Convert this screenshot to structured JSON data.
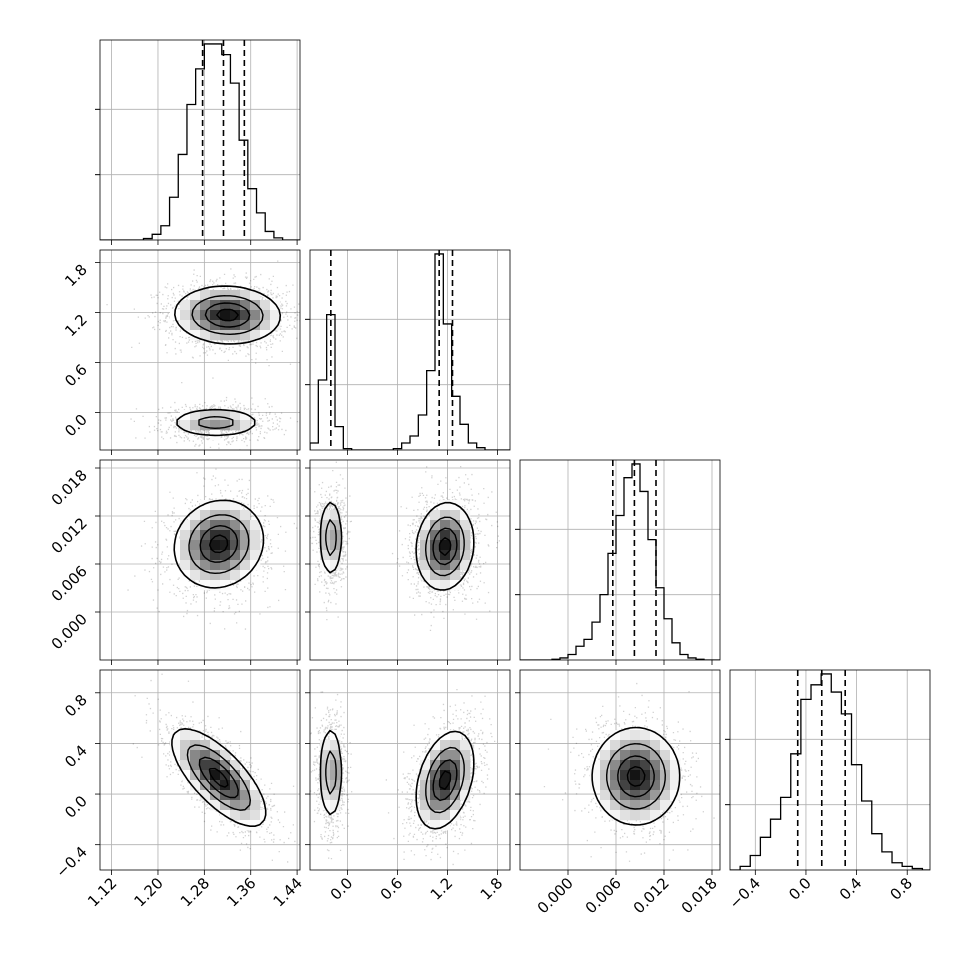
{
  "chart_data": {
    "type": "corner",
    "grid": true,
    "parameters": [
      {
        "ticks": [
          "1.12",
          "1.20",
          "1.28",
          "1.36",
          "1.44"
        ],
        "range": [
          1.1,
          1.445
        ],
        "quantiles": [
          1.277,
          1.313,
          1.349
        ]
      },
      {
        "ticks": [
          "0.0",
          "0.6",
          "1.2",
          "1.8"
        ],
        "range": [
          -0.45,
          1.95
        ],
        "quantiles": [
          -0.2,
          1.1,
          1.26
        ]
      },
      {
        "ticks": [
          "0.000",
          "0.006",
          "0.012",
          "0.018"
        ],
        "range": [
          -0.006,
          0.019
        ],
        "quantiles": [
          0.0056,
          0.0083,
          0.011
        ]
      },
      {
        "ticks": [
          "−0.4",
          "0.0",
          "0.4",
          "0.8"
        ],
        "range": [
          -0.6,
          0.98
        ],
        "quantiles": [
          -0.065,
          0.125,
          0.31
        ]
      }
    ],
    "histograms": [
      {
        "bins": [
          1.1,
          1.115,
          1.13,
          1.145,
          1.16,
          1.175,
          1.19,
          1.205,
          1.22,
          1.235,
          1.25,
          1.265,
          1.28,
          1.295,
          1.31,
          1.325,
          1.34,
          1.355,
          1.37,
          1.385,
          1.4,
          1.415,
          1.43,
          1.445
        ],
        "counts": [
          0,
          0,
          0,
          0,
          0,
          2,
          8,
          20,
          60,
          120,
          190,
          240,
          275,
          275,
          260,
          220,
          140,
          72,
          38,
          12,
          3,
          0,
          0
        ]
      },
      {
        "bins": [
          -0.45,
          -0.35,
          -0.25,
          -0.15,
          -0.05,
          0.05,
          0.15,
          0.25,
          0.35,
          0.45,
          0.55,
          0.65,
          0.75,
          0.85,
          0.95,
          1.05,
          1.15,
          1.25,
          1.35,
          1.45,
          1.55,
          1.65,
          1.75,
          1.85,
          1.95
        ],
        "counts": [
          15,
          150,
          290,
          50,
          3,
          0,
          0,
          0,
          0,
          0,
          3,
          15,
          30,
          75,
          170,
          420,
          270,
          115,
          55,
          15,
          5,
          0,
          0,
          0
        ]
      },
      {
        "bins": [
          -0.006,
          -0.005,
          -0.004,
          -0.003,
          -0.002,
          -0.001,
          0.0,
          0.001,
          0.002,
          0.003,
          0.004,
          0.005,
          0.006,
          0.007,
          0.008,
          0.009,
          0.01,
          0.011,
          0.012,
          0.013,
          0.014,
          0.015,
          0.016,
          0.017,
          0.018,
          0.019
        ],
        "counts": [
          0,
          0,
          0,
          0,
          1,
          3,
          8,
          20,
          30,
          55,
          95,
          155,
          210,
          265,
          285,
          245,
          175,
          105,
          60,
          25,
          8,
          3,
          1,
          0,
          0
        ]
      },
      {
        "bins": [
          -0.6,
          -0.52,
          -0.44,
          -0.36,
          -0.28,
          -0.2,
          -0.12,
          -0.04,
          0.04,
          0.12,
          0.2,
          0.28,
          0.36,
          0.44,
          0.52,
          0.6,
          0.68,
          0.76,
          0.84,
          0.92,
          0.98
        ],
        "counts": [
          0,
          5,
          20,
          45,
          70,
          100,
          160,
          235,
          255,
          270,
          245,
          215,
          145,
          95,
          50,
          25,
          10,
          5,
          2,
          0
        ]
      }
    ],
    "pairs": [
      {
        "row": 1,
        "col": 0,
        "modes": [
          {
            "cx": 1.32,
            "cy": 1.17,
            "sx": 0.045,
            "sy": 0.17,
            "rho": -0.05,
            "w": 1.0
          },
          {
            "cx": 1.3,
            "cy": -0.12,
            "sx": 0.04,
            "sy": 0.09,
            "rho": 0.0,
            "w": 0.55
          }
        ]
      },
      {
        "row": 2,
        "col": 0,
        "modes": [
          {
            "cx": 1.305,
            "cy": 0.0085,
            "sx": 0.038,
            "sy": 0.0027,
            "rho": 0.1,
            "w": 1.0
          }
        ]
      },
      {
        "row": 2,
        "col": 1,
        "modes": [
          {
            "cx": -0.2,
            "cy": 0.0093,
            "sx": 0.07,
            "sy": 0.0025,
            "rho": 0.0,
            "w": 0.6
          },
          {
            "cx": 1.17,
            "cy": 0.0082,
            "sx": 0.17,
            "sy": 0.0027,
            "rho": 0.1,
            "w": 1.0
          }
        ]
      },
      {
        "row": 3,
        "col": 0,
        "modes": [
          {
            "cx": 1.305,
            "cy": 0.13,
            "sx": 0.04,
            "sy": 0.19,
            "rho": -0.72,
            "w": 1.0
          }
        ]
      },
      {
        "row": 3,
        "col": 1,
        "modes": [
          {
            "cx": -0.2,
            "cy": 0.17,
            "sx": 0.07,
            "sy": 0.19,
            "rho": 0.0,
            "w": 0.6
          },
          {
            "cx": 1.17,
            "cy": 0.11,
            "sx": 0.17,
            "sy": 0.19,
            "rho": 0.35,
            "w": 1.0
          }
        ]
      },
      {
        "row": 3,
        "col": 2,
        "modes": [
          {
            "cx": 0.0085,
            "cy": 0.14,
            "sx": 0.0027,
            "sy": 0.19,
            "rho": 0.0,
            "w": 1.0
          }
        ]
      }
    ]
  }
}
